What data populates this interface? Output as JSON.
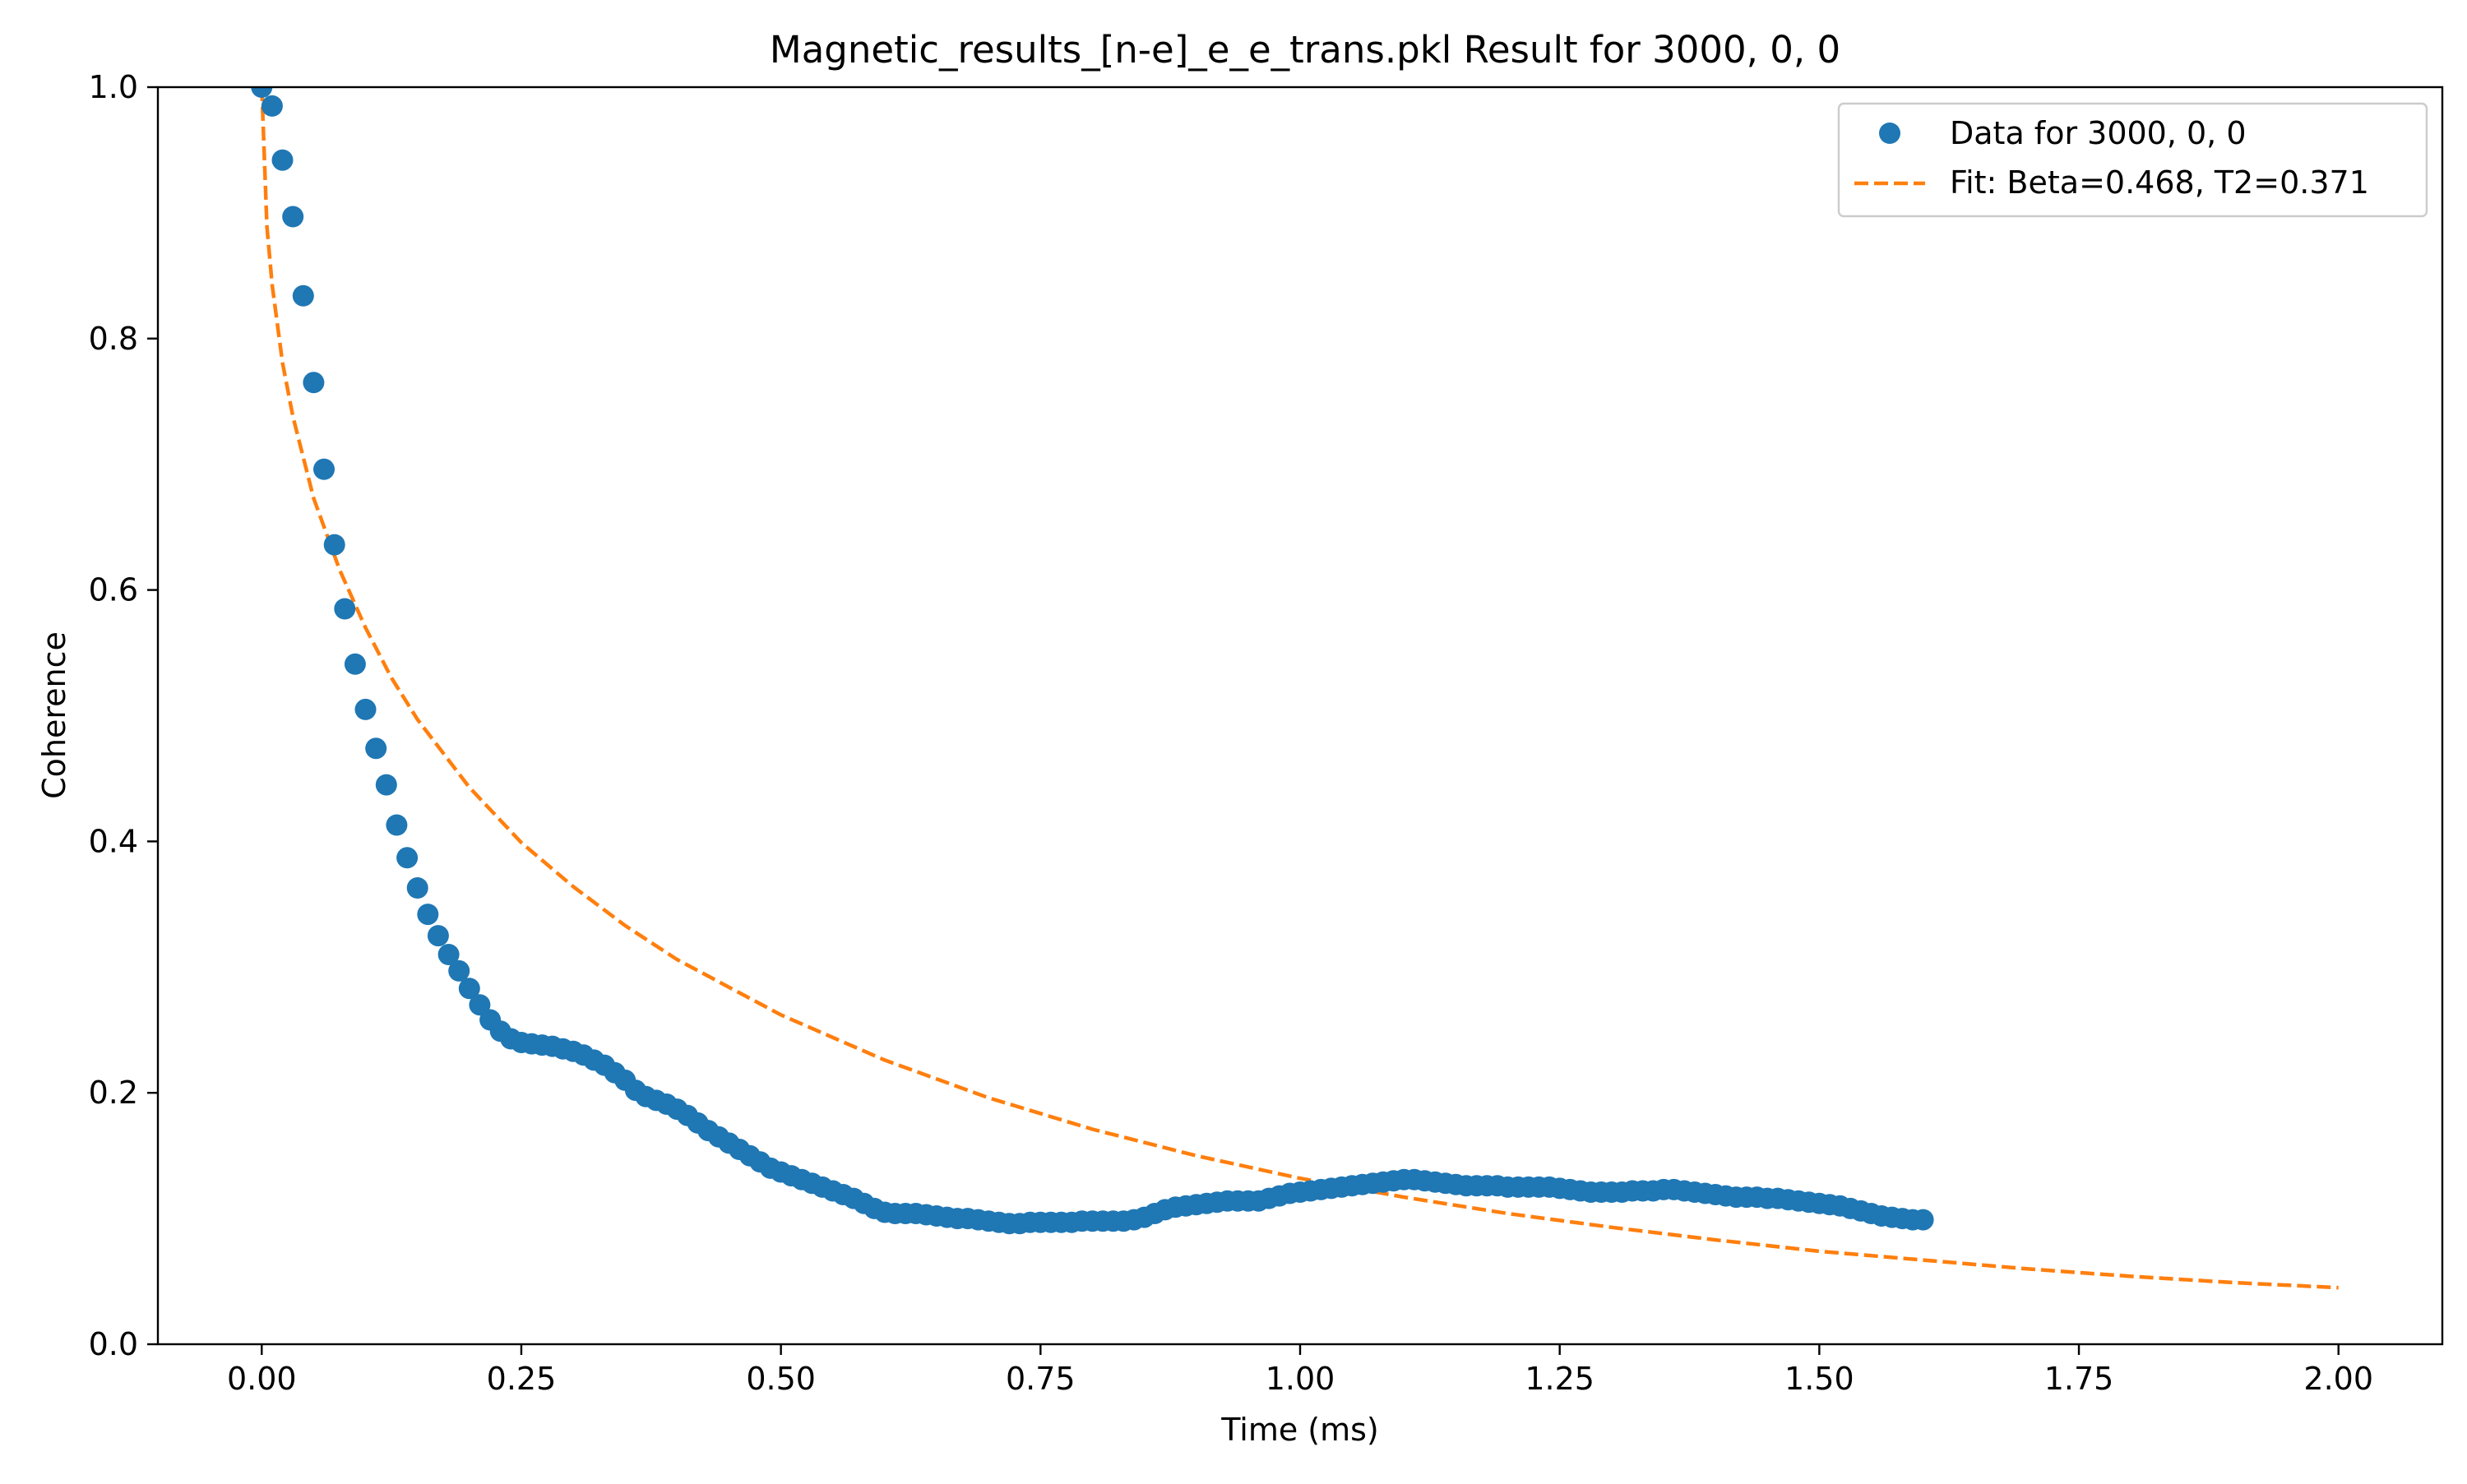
{
  "chart_data": {
    "type": "scatter",
    "title": "Magnetic_results_[n-e]_e_e_trans.pkl Result for 3000, 0, 0",
    "xlabel": "Time (ms)",
    "ylabel": "Coherence",
    "xlim": [
      -0.1,
      2.1
    ],
    "ylim": [
      0.0,
      1.0
    ],
    "xticks": [
      0.0,
      0.25,
      0.5,
      0.75,
      1.0,
      1.25,
      1.5,
      1.75,
      2.0
    ],
    "xtick_labels": [
      "0.00",
      "0.25",
      "0.50",
      "0.75",
      "1.00",
      "1.25",
      "1.50",
      "1.75",
      "2.00"
    ],
    "yticks": [
      0.0,
      0.2,
      0.4,
      0.6,
      0.8,
      1.0
    ],
    "ytick_labels": [
      "0.0",
      "0.2",
      "0.4",
      "0.6",
      "0.8",
      "1.0"
    ],
    "grid": false,
    "legend_position": "top-right",
    "legend": [
      {
        "label": "Data for 3000, 0, 0",
        "marker": "circle",
        "color": "#1f77b4"
      },
      {
        "label": "Fit: Beta=0.468, T2=0.371",
        "marker": "dashed-line",
        "color": "#ff7f0e"
      }
    ],
    "series": [
      {
        "name": "Data for 3000, 0, 0",
        "kind": "scatter",
        "color": "#1f77b4",
        "x_start": 0.0,
        "x_step": 0.01,
        "y": [
          1.0,
          0.985,
          0.942,
          0.897,
          0.834,
          0.765,
          0.696,
          0.636,
          0.585,
          0.541,
          0.505,
          0.474,
          0.445,
          0.413,
          0.387,
          0.363,
          0.342,
          0.325,
          0.31,
          0.297,
          0.283,
          0.27,
          0.258,
          0.249,
          0.243,
          0.24,
          0.239,
          0.238,
          0.237,
          0.235,
          0.233,
          0.23,
          0.226,
          0.222,
          0.216,
          0.21,
          0.202,
          0.197,
          0.194,
          0.191,
          0.187,
          0.182,
          0.176,
          0.17,
          0.165,
          0.16,
          0.155,
          0.15,
          0.145,
          0.14,
          0.137,
          0.134,
          0.131,
          0.128,
          0.125,
          0.122,
          0.119,
          0.116,
          0.112,
          0.108,
          0.105,
          0.104,
          0.104,
          0.104,
          0.103,
          0.102,
          0.101,
          0.1,
          0.1,
          0.099,
          0.098,
          0.097,
          0.096,
          0.096,
          0.097,
          0.097,
          0.097,
          0.097,
          0.097,
          0.098,
          0.098,
          0.098,
          0.098,
          0.098,
          0.099,
          0.101,
          0.104,
          0.107,
          0.109,
          0.11,
          0.111,
          0.112,
          0.113,
          0.114,
          0.114,
          0.114,
          0.114,
          0.116,
          0.118,
          0.12,
          0.121,
          0.122,
          0.123,
          0.124,
          0.125,
          0.126,
          0.127,
          0.128,
          0.129,
          0.13,
          0.131,
          0.131,
          0.13,
          0.129,
          0.128,
          0.127,
          0.126,
          0.126,
          0.126,
          0.126,
          0.125,
          0.125,
          0.125,
          0.125,
          0.125,
          0.124,
          0.123,
          0.122,
          0.121,
          0.121,
          0.121,
          0.121,
          0.122,
          0.122,
          0.122,
          0.123,
          0.123,
          0.122,
          0.121,
          0.12,
          0.119,
          0.118,
          0.117,
          0.117,
          0.117,
          0.116,
          0.116,
          0.115,
          0.114,
          0.113,
          0.112,
          0.111,
          0.11,
          0.108,
          0.106,
          0.104,
          0.102,
          0.101,
          0.1,
          0.099,
          0.099
        ]
      },
      {
        "name": "Fit: Beta=0.468, T2=0.371",
        "kind": "line",
        "style": "dashed",
        "color": "#ff7f0e",
        "x": [
          0.0,
          0.005,
          0.01,
          0.02,
          0.03,
          0.05,
          0.075,
          0.1,
          0.125,
          0.15,
          0.2,
          0.25,
          0.3,
          0.35,
          0.4,
          0.5,
          0.6,
          0.7,
          0.8,
          0.9,
          1.0,
          1.1,
          1.2,
          1.3,
          1.4,
          1.5,
          1.6,
          1.7,
          1.8,
          1.9,
          2.0
        ],
        "y": [
          1.0,
          0.889,
          0.843,
          0.781,
          0.738,
          0.673,
          0.616,
          0.57,
          0.53,
          0.497,
          0.443,
          0.399,
          0.364,
          0.333,
          0.306,
          0.262,
          0.226,
          0.196,
          0.171,
          0.15,
          0.132,
          0.117,
          0.104,
          0.093,
          0.083,
          0.074,
          0.067,
          0.06,
          0.054,
          0.049,
          0.045
        ]
      }
    ]
  }
}
